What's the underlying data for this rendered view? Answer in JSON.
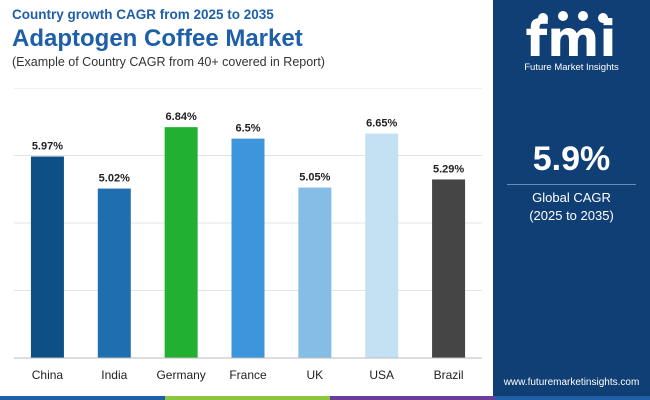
{
  "header": {
    "top_line": "Country growth CAGR from 2025 to 2035",
    "title": "Adaptogen Coffee Market",
    "note": "(Example of Country CAGR from 40+ covered in Report)"
  },
  "panel": {
    "logo_text": "fmi",
    "logo_sub": "Future Market Insights",
    "value": "5.9%",
    "label_line1": "Global CAGR",
    "label_line2": "(2025 to 2035)",
    "url": "www.futuremarketinsights.com"
  },
  "colors": {
    "panel_bg": "#0f3f75",
    "title_blue": "#1f5fa8",
    "strip": [
      "#1f5fa8",
      "#8cc63f",
      "#6a3d9a",
      "#1f5fa8"
    ]
  },
  "chart_data": {
    "type": "bar",
    "categories": [
      "China",
      "India",
      "Germany",
      "France",
      "UK",
      "USA",
      "Brazil"
    ],
    "values": [
      5.97,
      5.02,
      6.84,
      6.5,
      5.05,
      6.65,
      5.29
    ],
    "value_labels": [
      "5.97%",
      "5.02%",
      "6.84%",
      "6.5%",
      "5.05%",
      "6.65%",
      "5.29%"
    ],
    "bar_colors": [
      "#0e4f86",
      "#1f6fb0",
      "#22b033",
      "#3d95db",
      "#84bde6",
      "#c3e1f3",
      "#454545"
    ],
    "title": "",
    "xlabel": "",
    "ylabel": "",
    "ylim": [
      0,
      8
    ],
    "grid": true,
    "legend": "none"
  }
}
